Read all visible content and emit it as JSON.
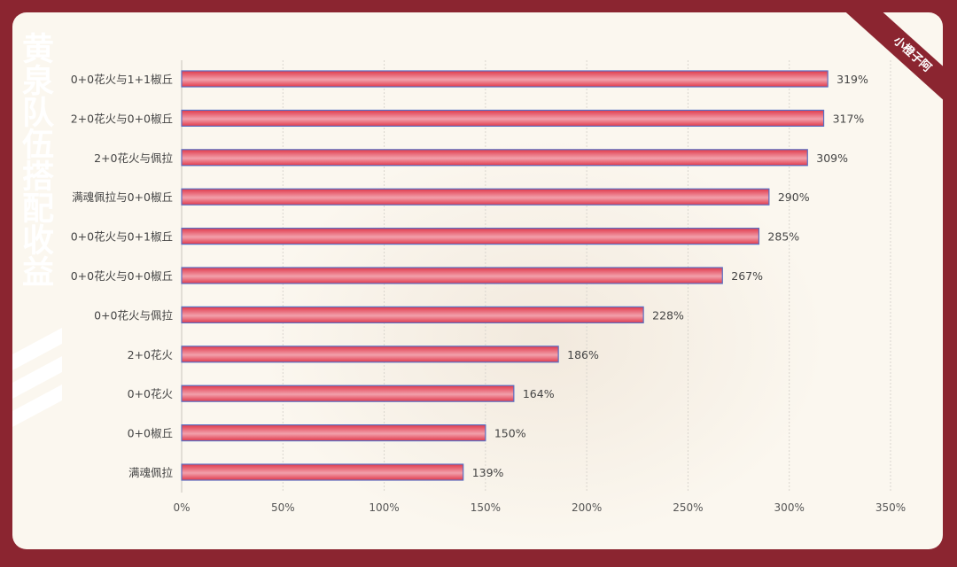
{
  "title": "黄泉队伍搭配收益",
  "badge": {
    "text": "小橙子阿"
  },
  "colors": {
    "accent": "#8b2530",
    "bar": "#e6394b",
    "bar_light": "#f3a2ad",
    "bar_border": "#5a6fc2",
    "panel": "#fbf7ef"
  },
  "chart_data": {
    "type": "bar",
    "orientation": "horizontal",
    "title": "黄泉队伍搭配收益",
    "categories": [
      "0+0花火与1+1椒丘",
      "2+0花火与0+0椒丘",
      "2+0花火与佩拉",
      "满魂佩拉与0+0椒丘",
      "0+0花火与0+1椒丘",
      "0+0花火与0+0椒丘",
      "0+0花火与佩拉",
      "2+0花火",
      "0+0花火",
      "0+0椒丘",
      "满魂佩拉"
    ],
    "values": [
      319,
      317,
      309,
      290,
      285,
      267,
      228,
      186,
      164,
      150,
      139
    ],
    "value_labels": [
      "319%",
      "317%",
      "309%",
      "290%",
      "285%",
      "267%",
      "228%",
      "186%",
      "164%",
      "150%",
      "139%"
    ],
    "x_ticks": [
      0,
      50,
      100,
      150,
      200,
      250,
      300,
      350
    ],
    "x_tick_labels": [
      "0%",
      "50%",
      "100%",
      "150%",
      "200%",
      "250%",
      "300%",
      "350%"
    ],
    "xlim": [
      0,
      350
    ],
    "grid": true,
    "xlabel": "",
    "ylabel": ""
  }
}
